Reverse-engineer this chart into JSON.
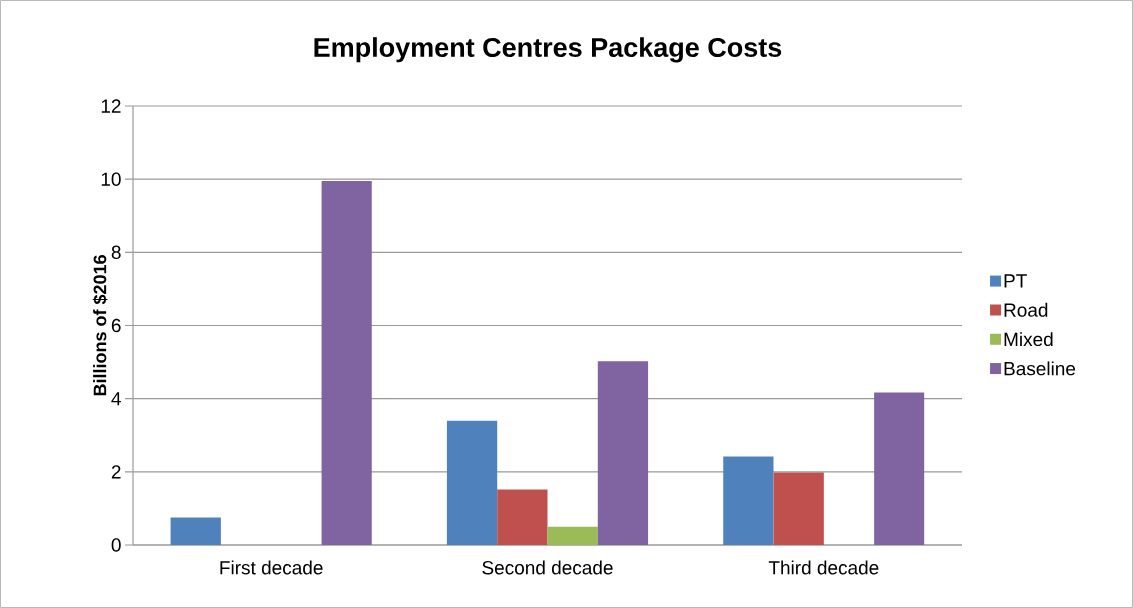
{
  "chart_data": {
    "type": "bar",
    "title": "Employment Centres Package Costs",
    "ylabel": "Billions of $2016",
    "categories": [
      "First decade",
      "Second decade",
      "Third decade"
    ],
    "series": [
      {
        "name": "PT",
        "color": "#4f81bd",
        "values": [
          0.75,
          3.4,
          2.42
        ]
      },
      {
        "name": "Road",
        "color": "#c0504d",
        "values": [
          0,
          1.52,
          1.98
        ]
      },
      {
        "name": "Mixed",
        "color": "#9bbb59",
        "values": [
          0,
          0.5,
          0
        ]
      },
      {
        "name": "Baseline",
        "color": "#8064a2",
        "values": [
          9.95,
          5.02,
          4.17
        ]
      }
    ],
    "ylim": [
      0,
      12
    ],
    "yticks": [
      0,
      2,
      4,
      6,
      8,
      10,
      12
    ],
    "grid": "y",
    "legend": "right"
  }
}
